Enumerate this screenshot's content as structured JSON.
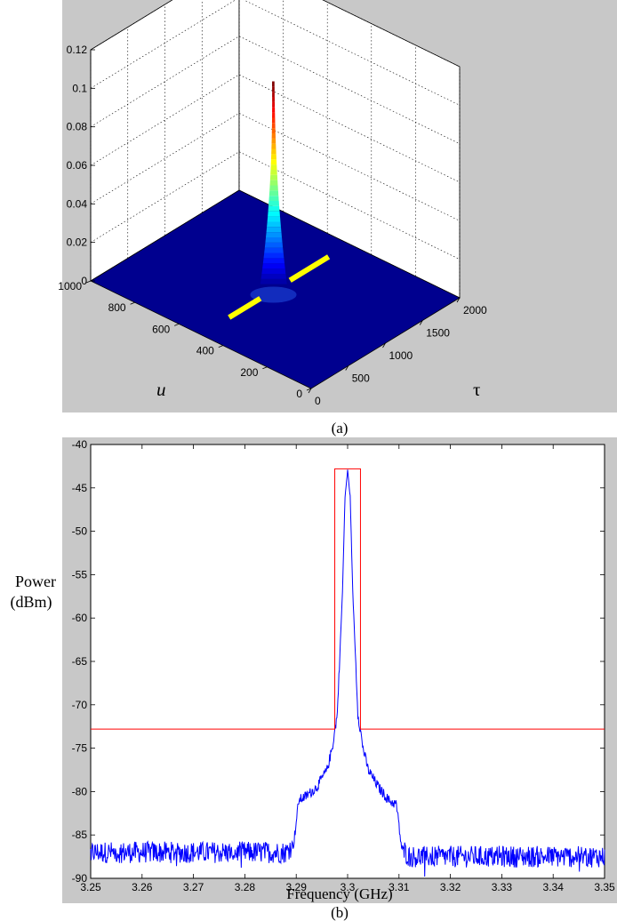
{
  "chart_data": [
    {
      "type": "surface3d",
      "panel_label": "(a)",
      "xlabel": "τ",
      "ylabel": "u",
      "zlabel": "",
      "xlim": [
        0,
        2000
      ],
      "ylim": [
        0,
        1000
      ],
      "zlim": [
        0,
        0.12
      ],
      "x_ticks": [
        "0",
        "500",
        "1000",
        "1500",
        "2000"
      ],
      "y_ticks": [
        "0",
        "200",
        "400",
        "600",
        "800",
        "1000"
      ],
      "z_ticks": [
        "0",
        "0.02",
        "0.04",
        "0.06",
        "0.08",
        "0.1",
        "0.12"
      ],
      "grid": true,
      "peak": {
        "tau": 1000,
        "u": 500,
        "z": 0.108
      },
      "marker_line": {
        "color": "#ffff00",
        "u": 500
      },
      "colors": {
        "floor": "#00008f",
        "pane": "#ffffff",
        "marker": "#ffff00"
      }
    },
    {
      "type": "line",
      "panel_label": "(b)",
      "xlabel": "Frequency (GHz)",
      "ylabel": "Power\n(dBm)",
      "ylabel_lines": [
        "Power",
        "(dBm)"
      ],
      "xlim": [
        3.25,
        3.35
      ],
      "ylim": [
        -90,
        -40
      ],
      "x_ticks": [
        "3.25",
        "3.26",
        "3.27",
        "3.28",
        "3.29",
        "3.3",
        "3.31",
        "3.32",
        "3.33",
        "3.34",
        "3.35"
      ],
      "y_ticks": [
        "-40",
        "-45",
        "-50",
        "-55",
        "-60",
        "-65",
        "-70",
        "-75",
        "-80",
        "-85",
        "-90"
      ],
      "grid": false,
      "series": [
        {
          "color": "#0000ff",
          "x": [
            3.25,
            3.26,
            3.27,
            3.28,
            3.288,
            3.2895,
            3.2905,
            3.292,
            3.294,
            3.296,
            3.297,
            3.298,
            3.299,
            3.2995,
            3.3,
            3.3005,
            3.301,
            3.302,
            3.303,
            3.304,
            3.306,
            3.308,
            3.3095,
            3.3105,
            3.312,
            3.32,
            3.33,
            3.34,
            3.35
          ],
          "y": [
            -87,
            -87,
            -87,
            -87,
            -87,
            -86,
            -81,
            -80.5,
            -79.5,
            -77.5,
            -75,
            -71,
            -57,
            -46,
            -43,
            -46,
            -57,
            -71,
            -75,
            -77.5,
            -79.5,
            -81,
            -81.5,
            -86.5,
            -87.5,
            -87.5,
            -87.5,
            -87.5,
            -87.5
          ],
          "noise_dbm_pp": 2.5
        },
        {
          "color": "#ff0000",
          "x": [
            3.25,
            3.2975,
            3.2975,
            3.3025,
            3.3025,
            3.35
          ],
          "y": [
            -72.8,
            -72.8,
            -42.8,
            -42.8,
            -72.8,
            -72.8
          ]
        }
      ]
    }
  ]
}
